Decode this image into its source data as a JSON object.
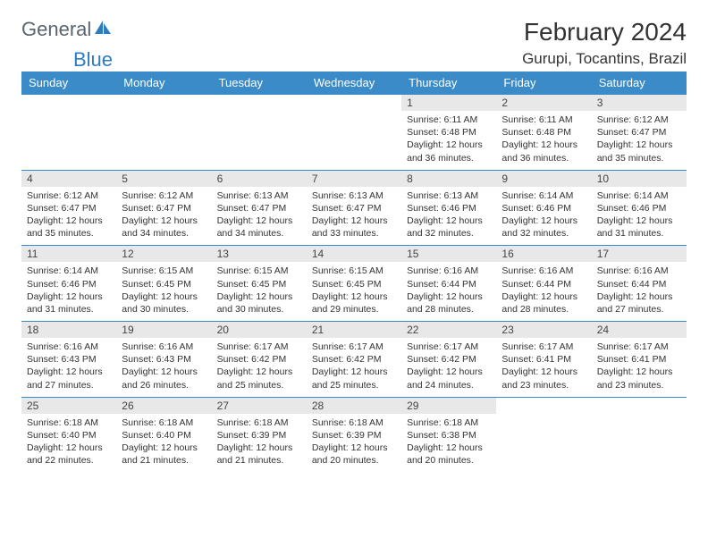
{
  "brand": {
    "text1": "General",
    "text2": "Blue",
    "text1_color": "#5a6570",
    "text2_color": "#2d7cc0",
    "icon_color": "#2d7cc0"
  },
  "title": "February 2024",
  "location": "Gurupi, Tocantins, Brazil",
  "weekdays": [
    "Sunday",
    "Monday",
    "Tuesday",
    "Wednesday",
    "Thursday",
    "Friday",
    "Saturday"
  ],
  "colors": {
    "header_bg": "#3b8bc8",
    "header_text": "#ffffff",
    "daynum_bg": "#e8e8e8",
    "row_border": "#3b8bc8",
    "body_text": "#333333"
  },
  "first_weekday_index": 4,
  "days": [
    {
      "n": 1,
      "sunrise": "6:11 AM",
      "sunset": "6:48 PM",
      "daylight": "12 hours and 36 minutes."
    },
    {
      "n": 2,
      "sunrise": "6:11 AM",
      "sunset": "6:48 PM",
      "daylight": "12 hours and 36 minutes."
    },
    {
      "n": 3,
      "sunrise": "6:12 AM",
      "sunset": "6:47 PM",
      "daylight": "12 hours and 35 minutes."
    },
    {
      "n": 4,
      "sunrise": "6:12 AM",
      "sunset": "6:47 PM",
      "daylight": "12 hours and 35 minutes."
    },
    {
      "n": 5,
      "sunrise": "6:12 AM",
      "sunset": "6:47 PM",
      "daylight": "12 hours and 34 minutes."
    },
    {
      "n": 6,
      "sunrise": "6:13 AM",
      "sunset": "6:47 PM",
      "daylight": "12 hours and 34 minutes."
    },
    {
      "n": 7,
      "sunrise": "6:13 AM",
      "sunset": "6:47 PM",
      "daylight": "12 hours and 33 minutes."
    },
    {
      "n": 8,
      "sunrise": "6:13 AM",
      "sunset": "6:46 PM",
      "daylight": "12 hours and 32 minutes."
    },
    {
      "n": 9,
      "sunrise": "6:14 AM",
      "sunset": "6:46 PM",
      "daylight": "12 hours and 32 minutes."
    },
    {
      "n": 10,
      "sunrise": "6:14 AM",
      "sunset": "6:46 PM",
      "daylight": "12 hours and 31 minutes."
    },
    {
      "n": 11,
      "sunrise": "6:14 AM",
      "sunset": "6:46 PM",
      "daylight": "12 hours and 31 minutes."
    },
    {
      "n": 12,
      "sunrise": "6:15 AM",
      "sunset": "6:45 PM",
      "daylight": "12 hours and 30 minutes."
    },
    {
      "n": 13,
      "sunrise": "6:15 AM",
      "sunset": "6:45 PM",
      "daylight": "12 hours and 30 minutes."
    },
    {
      "n": 14,
      "sunrise": "6:15 AM",
      "sunset": "6:45 PM",
      "daylight": "12 hours and 29 minutes."
    },
    {
      "n": 15,
      "sunrise": "6:16 AM",
      "sunset": "6:44 PM",
      "daylight": "12 hours and 28 minutes."
    },
    {
      "n": 16,
      "sunrise": "6:16 AM",
      "sunset": "6:44 PM",
      "daylight": "12 hours and 28 minutes."
    },
    {
      "n": 17,
      "sunrise": "6:16 AM",
      "sunset": "6:44 PM",
      "daylight": "12 hours and 27 minutes."
    },
    {
      "n": 18,
      "sunrise": "6:16 AM",
      "sunset": "6:43 PM",
      "daylight": "12 hours and 27 minutes."
    },
    {
      "n": 19,
      "sunrise": "6:16 AM",
      "sunset": "6:43 PM",
      "daylight": "12 hours and 26 minutes."
    },
    {
      "n": 20,
      "sunrise": "6:17 AM",
      "sunset": "6:42 PM",
      "daylight": "12 hours and 25 minutes."
    },
    {
      "n": 21,
      "sunrise": "6:17 AM",
      "sunset": "6:42 PM",
      "daylight": "12 hours and 25 minutes."
    },
    {
      "n": 22,
      "sunrise": "6:17 AM",
      "sunset": "6:42 PM",
      "daylight": "12 hours and 24 minutes."
    },
    {
      "n": 23,
      "sunrise": "6:17 AM",
      "sunset": "6:41 PM",
      "daylight": "12 hours and 23 minutes."
    },
    {
      "n": 24,
      "sunrise": "6:17 AM",
      "sunset": "6:41 PM",
      "daylight": "12 hours and 23 minutes."
    },
    {
      "n": 25,
      "sunrise": "6:18 AM",
      "sunset": "6:40 PM",
      "daylight": "12 hours and 22 minutes."
    },
    {
      "n": 26,
      "sunrise": "6:18 AM",
      "sunset": "6:40 PM",
      "daylight": "12 hours and 21 minutes."
    },
    {
      "n": 27,
      "sunrise": "6:18 AM",
      "sunset": "6:39 PM",
      "daylight": "12 hours and 21 minutes."
    },
    {
      "n": 28,
      "sunrise": "6:18 AM",
      "sunset": "6:39 PM",
      "daylight": "12 hours and 20 minutes."
    },
    {
      "n": 29,
      "sunrise": "6:18 AM",
      "sunset": "6:38 PM",
      "daylight": "12 hours and 20 minutes."
    }
  ],
  "labels": {
    "sunrise": "Sunrise:",
    "sunset": "Sunset:",
    "daylight": "Daylight:"
  }
}
